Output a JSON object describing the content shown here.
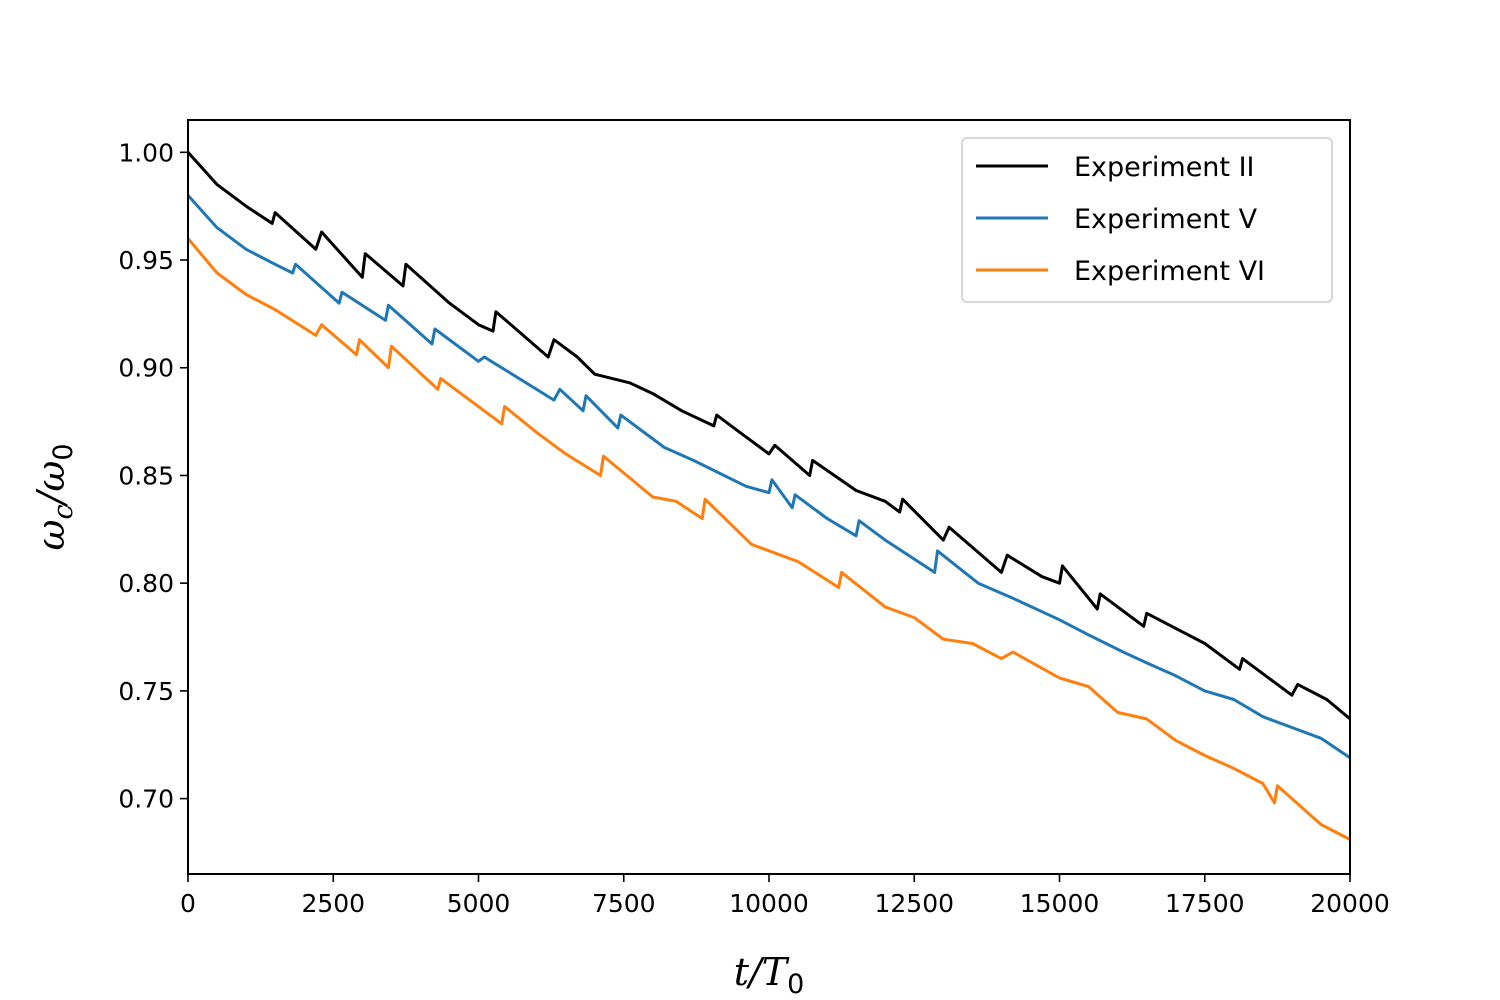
{
  "chart_data": {
    "type": "line",
    "xlabel": {
      "main": "t/T",
      "sub": "0"
    },
    "ylabel": {
      "main": "ω",
      "sub1": "c",
      "mid": "/ω",
      "sub2": "0"
    },
    "xlim": [
      0,
      20000
    ],
    "ylim": [
      0.665,
      1.015
    ],
    "xticks": [
      0,
      2500,
      5000,
      7500,
      10000,
      12500,
      15000,
      17500,
      20000
    ],
    "yticks": [
      0.7,
      0.75,
      0.8,
      0.85,
      0.9,
      0.95,
      1.0
    ],
    "xtick_labels": [
      "0",
      "2500",
      "5000",
      "7500",
      "10000",
      "12500",
      "15000",
      "17500",
      "20000"
    ],
    "ytick_labels": [
      "0.70",
      "0.75",
      "0.80",
      "0.85",
      "0.90",
      "0.95",
      "1.00"
    ],
    "grid": false,
    "legend": {
      "position": "top-right"
    },
    "series": [
      {
        "name": "Experiment II",
        "color": "#000000",
        "x": [
          0,
          500,
          1000,
          1450,
          1500,
          2200,
          2300,
          3000,
          3050,
          3700,
          3750,
          4500,
          5000,
          5250,
          5300,
          6200,
          6300,
          6700,
          7000,
          7600,
          8000,
          8500,
          9050,
          9100,
          9500,
          10000,
          10100,
          10700,
          10750,
          11500,
          12000,
          12250,
          12300,
          13000,
          13100,
          14000,
          14100,
          14700,
          15000,
          15050,
          15650,
          15700,
          16450,
          16500,
          17500,
          18100,
          18150,
          19000,
          19100,
          19600,
          20000
        ],
        "y": [
          1.0,
          0.985,
          0.975,
          0.967,
          0.972,
          0.955,
          0.963,
          0.942,
          0.953,
          0.938,
          0.948,
          0.93,
          0.92,
          0.917,
          0.926,
          0.905,
          0.913,
          0.905,
          0.897,
          0.893,
          0.888,
          0.88,
          0.873,
          0.878,
          0.87,
          0.86,
          0.864,
          0.85,
          0.857,
          0.843,
          0.838,
          0.833,
          0.839,
          0.82,
          0.826,
          0.805,
          0.813,
          0.803,
          0.8,
          0.808,
          0.788,
          0.795,
          0.78,
          0.786,
          0.772,
          0.76,
          0.765,
          0.748,
          0.753,
          0.746,
          0.737
        ]
      },
      {
        "name": "Experiment V",
        "color": "#1f77b4",
        "x": [
          0,
          500,
          1000,
          1500,
          1800,
          1850,
          2600,
          2650,
          3400,
          3450,
          4200,
          4250,
          5000,
          5100,
          6300,
          6400,
          6800,
          6850,
          7400,
          7450,
          8200,
          8700,
          9600,
          10000,
          10050,
          10400,
          10450,
          11000,
          11500,
          11550,
          12000,
          12850,
          12900,
          13600,
          14200,
          15000,
          15500,
          16100,
          16500,
          17000,
          17500,
          18000,
          18500,
          19000,
          19500,
          20000
        ],
        "y": [
          0.98,
          0.965,
          0.955,
          0.948,
          0.944,
          0.948,
          0.93,
          0.935,
          0.922,
          0.929,
          0.911,
          0.918,
          0.903,
          0.905,
          0.885,
          0.89,
          0.88,
          0.887,
          0.872,
          0.878,
          0.863,
          0.857,
          0.845,
          0.842,
          0.848,
          0.835,
          0.841,
          0.83,
          0.822,
          0.829,
          0.82,
          0.805,
          0.815,
          0.8,
          0.793,
          0.783,
          0.776,
          0.768,
          0.763,
          0.757,
          0.75,
          0.746,
          0.738,
          0.733,
          0.728,
          0.719
        ]
      },
      {
        "name": "Experiment VI",
        "color": "#ff7f0e",
        "x": [
          0,
          500,
          1000,
          1500,
          2200,
          2300,
          2900,
          2950,
          3450,
          3500,
          4300,
          4350,
          5400,
          5450,
          6000,
          6500,
          7100,
          7150,
          8000,
          8400,
          8850,
          8900,
          9700,
          10500,
          11200,
          11250,
          12000,
          12500,
          13000,
          13500,
          14000,
          14200,
          15000,
          15500,
          16000,
          16500,
          17000,
          17500,
          18000,
          18500,
          18700,
          18750,
          19500,
          20000
        ],
        "y": [
          0.96,
          0.944,
          0.934,
          0.927,
          0.915,
          0.92,
          0.906,
          0.913,
          0.9,
          0.91,
          0.89,
          0.895,
          0.874,
          0.882,
          0.87,
          0.86,
          0.85,
          0.859,
          0.84,
          0.838,
          0.83,
          0.839,
          0.818,
          0.81,
          0.798,
          0.805,
          0.789,
          0.784,
          0.774,
          0.772,
          0.765,
          0.768,
          0.756,
          0.752,
          0.74,
          0.737,
          0.727,
          0.72,
          0.714,
          0.707,
          0.698,
          0.706,
          0.688,
          0.681
        ]
      }
    ]
  }
}
